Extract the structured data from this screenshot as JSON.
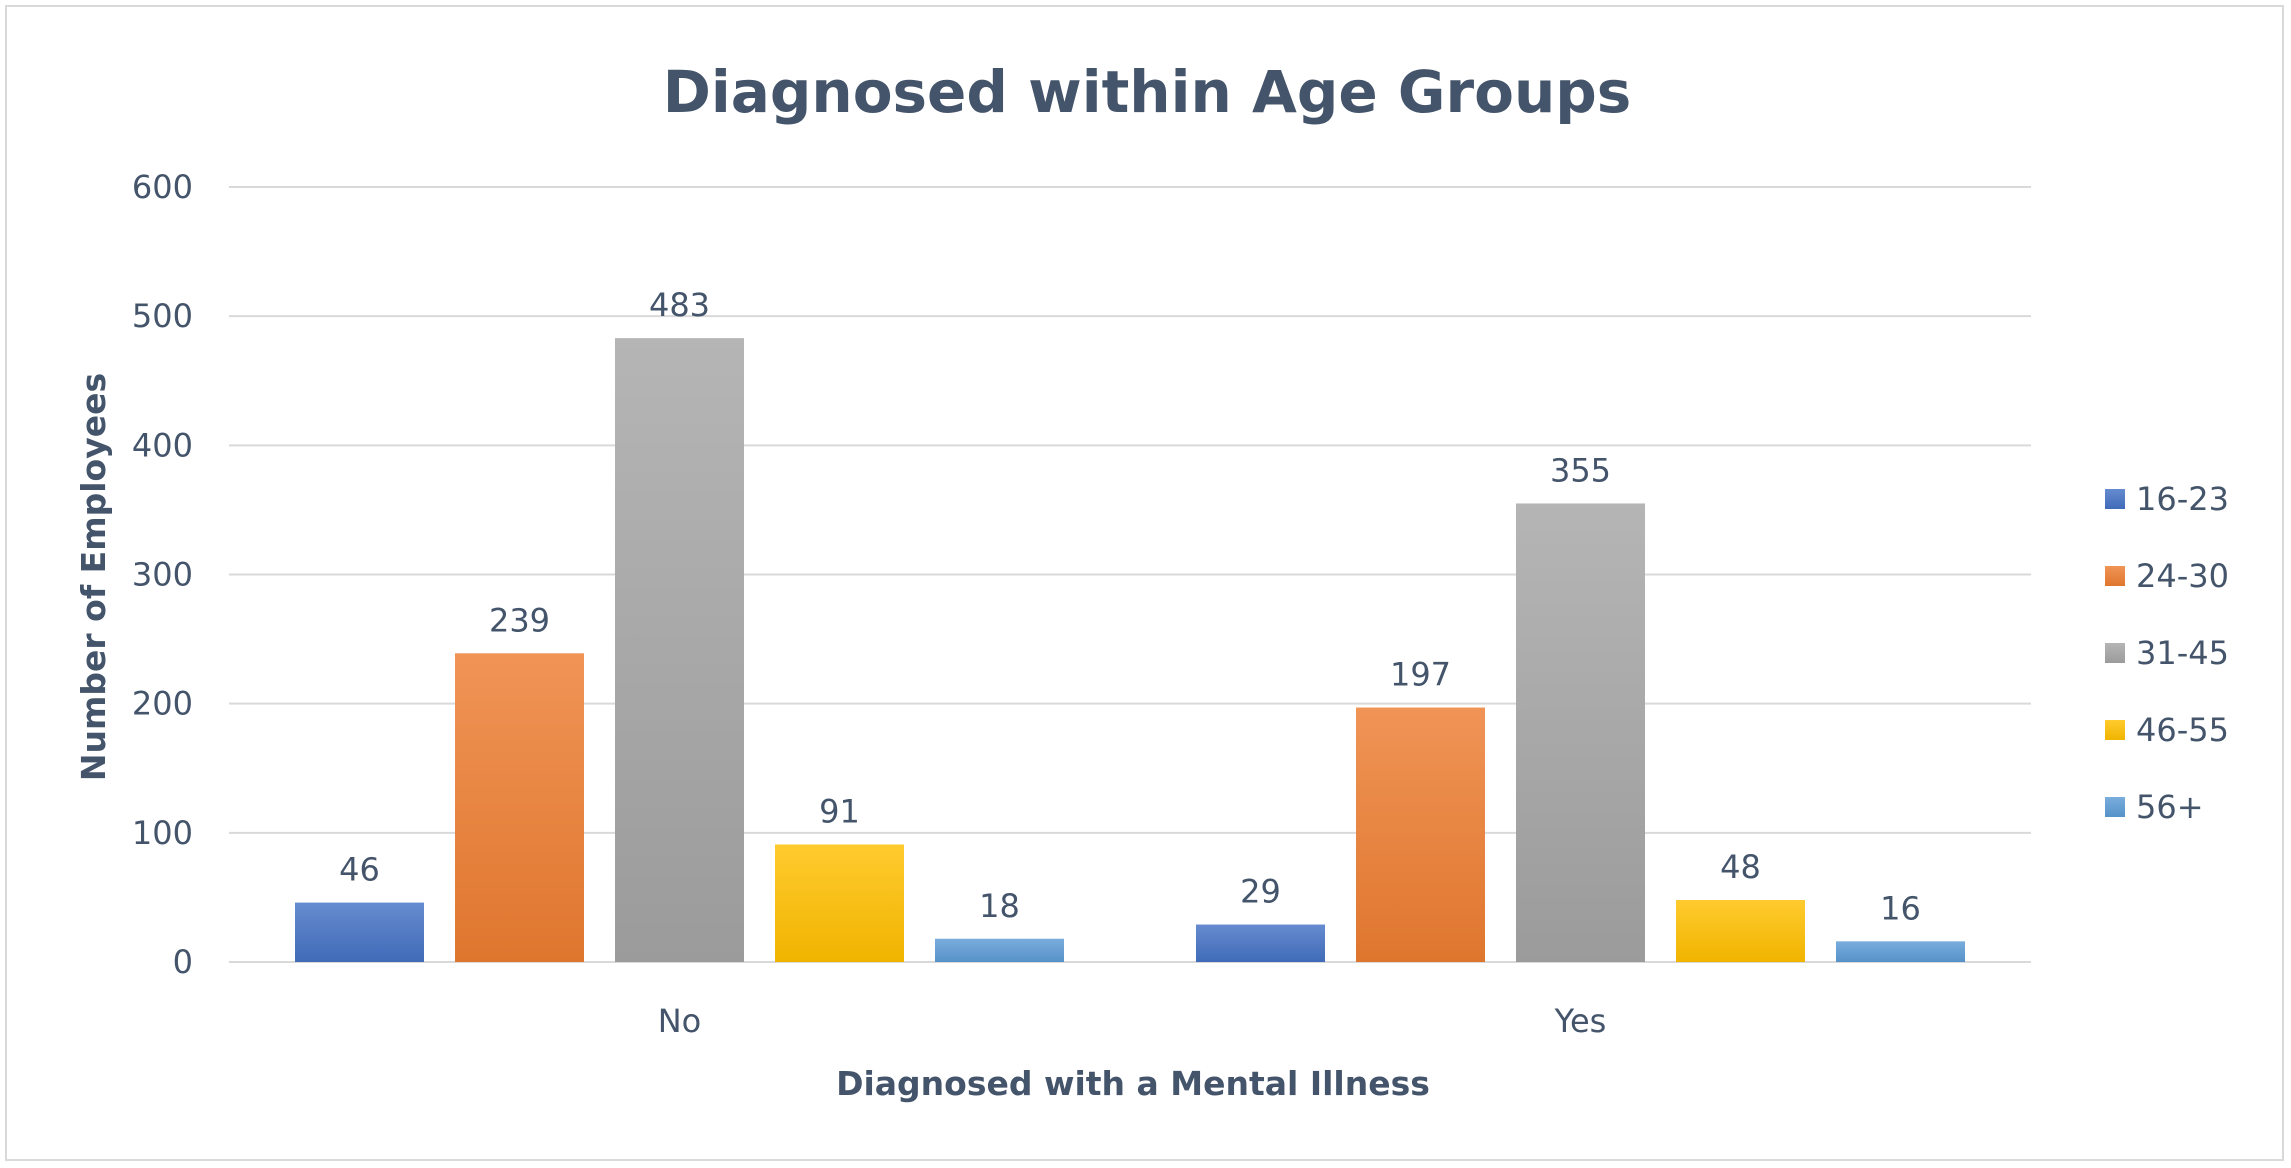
{
  "chart_data": {
    "type": "bar",
    "title": "Diagnosed within Age Groups",
    "xlabel": "Diagnosed with a Mental Illness",
    "ylabel": "Number of Employees",
    "categories": [
      "No",
      "Yes"
    ],
    "ylim": [
      0,
      600
    ],
    "yticks": [
      0,
      100,
      200,
      300,
      400,
      500,
      600
    ],
    "grid": true,
    "legend_position": "right",
    "data_labels": true,
    "series": [
      {
        "name": "16-23",
        "values": [
          46,
          29
        ],
        "color": "#4472c4"
      },
      {
        "name": "24-30",
        "values": [
          239,
          197
        ],
        "color": "#ed7d31"
      },
      {
        "name": "31-45",
        "values": [
          483,
          355
        ],
        "color": "#a5a5a5"
      },
      {
        "name": "46-55",
        "values": [
          91,
          48
        ],
        "color": "#ffc000"
      },
      {
        "name": "56+",
        "values": [
          18,
          16
        ],
        "color": "#5b9bd5"
      }
    ]
  }
}
